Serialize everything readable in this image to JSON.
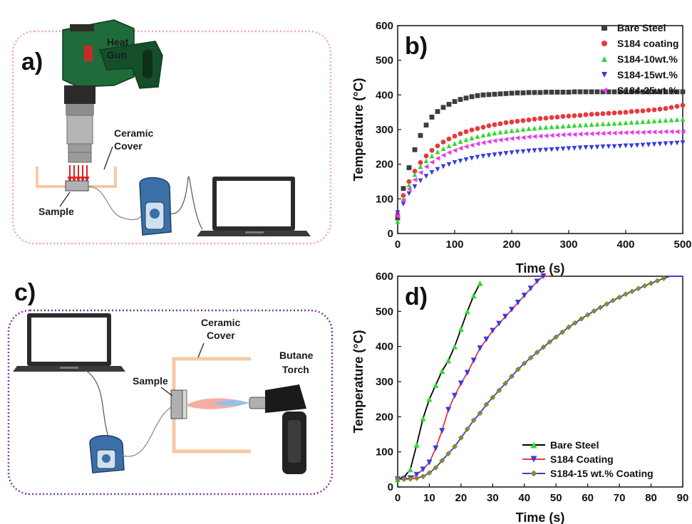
{
  "panel_a": {
    "letter": "a)",
    "heat_gun_label": [
      "Heat",
      "Gun"
    ],
    "ceramic_cover_label": [
      "Ceramic",
      "Cover"
    ],
    "sample_label": "Sample"
  },
  "panel_c": {
    "letter": "c)",
    "ceramic_cover_label": [
      "Ceramic",
      "Cover"
    ],
    "sample_label": "Sample",
    "torch_label": [
      "Butane",
      "Torch"
    ]
  },
  "colors": {
    "frame_a": "#f3a8a4",
    "frame_c": "#7e3a9e",
    "cover": "#f6c9a4",
    "gun_body": "#1f6b3a",
    "gun_handle": "#154f2a",
    "laptop": "#2b2b2b",
    "sensor": "#3b6fa8"
  },
  "chart_data": [
    {
      "type": "scatter",
      "panel": "b)",
      "xlabel": "Time (s)",
      "ylabel": "Temperature (°C)",
      "xlim": [
        0,
        500
      ],
      "ylim": [
        0,
        600
      ],
      "xticks": [
        0,
        100,
        200,
        300,
        400,
        500
      ],
      "yticks": [
        0,
        100,
        200,
        300,
        400,
        500,
        600
      ],
      "x": [
        0,
        10,
        20,
        30,
        40,
        50,
        60,
        70,
        80,
        90,
        100,
        110,
        120,
        130,
        140,
        150,
        160,
        170,
        180,
        190,
        200,
        210,
        220,
        230,
        240,
        250,
        260,
        270,
        280,
        290,
        300,
        310,
        320,
        330,
        340,
        350,
        360,
        370,
        380,
        390,
        400,
        410,
        420,
        430,
        440,
        450,
        460,
        470,
        480,
        490,
        500
      ],
      "legend_position": "top-right",
      "series": [
        {
          "name": "Bare Steel",
          "color": "#3c3c3c",
          "marker": "square",
          "values": [
            45,
            130,
            190,
            242,
            283,
            313,
            336,
            352,
            364,
            373,
            381,
            387,
            391,
            395,
            398,
            400,
            401,
            402,
            403,
            404,
            405,
            406,
            406,
            407,
            407,
            407,
            408,
            408,
            408,
            408,
            408,
            409,
            409,
            409,
            409,
            409,
            409,
            409,
            409,
            409,
            409,
            409,
            409,
            409,
            409,
            409,
            409,
            409,
            409,
            409,
            409
          ]
        },
        {
          "name": "S184 coating",
          "color": "#e8393b",
          "marker": "circle",
          "values": [
            55,
            110,
            150,
            180,
            205,
            224,
            240,
            253,
            264,
            273,
            281,
            288,
            294,
            299,
            303,
            307,
            311,
            314,
            317,
            320,
            322,
            324,
            326,
            328,
            330,
            332,
            333,
            335,
            336,
            338,
            339,
            340,
            341,
            343,
            344,
            345,
            346,
            347,
            348,
            349,
            350,
            352,
            353,
            354,
            356,
            357,
            359,
            361,
            364,
            367,
            370
          ]
        },
        {
          "name": "S184-10wt.%",
          "color": "#33d633",
          "marker": "triangle-up",
          "values": [
            35,
            100,
            140,
            170,
            193,
            210,
            224,
            236,
            245,
            253,
            260,
            266,
            271,
            276,
            280,
            284,
            287,
            290,
            293,
            295,
            297,
            299,
            301,
            303,
            304,
            306,
            307,
            308,
            309,
            310,
            311,
            312,
            313,
            314,
            315,
            316,
            317,
            317,
            318,
            319,
            320,
            321,
            322,
            323,
            324,
            325,
            326,
            327,
            328,
            329,
            330
          ]
        },
        {
          "name": "S184-15wt.%",
          "color": "#3a3ae0",
          "marker": "triangle-down",
          "values": [
            60,
            85,
            115,
            135,
            152,
            165,
            176,
            185,
            193,
            199,
            205,
            209,
            213,
            217,
            220,
            223,
            225,
            227,
            229,
            231,
            233,
            235,
            236,
            238,
            239,
            240,
            241,
            242,
            243,
            244,
            245,
            246,
            247,
            248,
            248,
            249,
            250,
            251,
            251,
            252,
            253,
            253,
            254,
            255,
            256,
            257,
            258,
            259,
            260,
            261,
            262
          ]
        },
        {
          "name": "S184-25wt.%",
          "color": "#e83ce8",
          "marker": "triangle-left",
          "values": [
            50,
            95,
            128,
            155,
            176,
            193,
            206,
            217,
            226,
            234,
            240,
            246,
            251,
            255,
            259,
            262,
            265,
            268,
            270,
            272,
            274,
            276,
            277,
            279,
            280,
            281,
            282,
            283,
            284,
            285,
            286,
            286,
            287,
            288,
            288,
            289,
            289,
            290,
            290,
            291,
            291,
            292,
            292,
            292,
            293,
            293,
            293,
            294,
            294,
            294,
            295
          ]
        }
      ]
    },
    {
      "type": "line",
      "panel": "d)",
      "xlabel": "Time (s)",
      "ylabel": "Temperature (°C)",
      "xlim": [
        0,
        90
      ],
      "ylim": [
        0,
        600
      ],
      "xticks": [
        0,
        10,
        20,
        30,
        40,
        50,
        60,
        70,
        80,
        90
      ],
      "yticks": [
        0,
        100,
        200,
        300,
        400,
        500,
        600
      ],
      "legend_position": "bottom-right",
      "series": [
        {
          "name": "Bare Steel",
          "line_color": "#000000",
          "marker_color": "#33d633",
          "marker": "triangle-up",
          "x": [
            0,
            2,
            4,
            6,
            8,
            10,
            12,
            14,
            16,
            18,
            20,
            22,
            24,
            26
          ],
          "values": [
            22,
            28,
            50,
            120,
            195,
            250,
            290,
            330,
            360,
            400,
            450,
            500,
            545,
            580
          ]
        },
        {
          "name": "S184 Coating",
          "line_color": "#e8393b",
          "marker_color": "#3a3ae0",
          "marker": "triangle-down",
          "x": [
            0,
            2,
            4,
            6,
            8,
            10,
            12,
            14,
            16,
            18,
            20,
            22,
            24,
            26,
            28,
            30,
            32,
            34,
            36,
            38,
            40,
            42,
            44,
            46,
            48
          ],
          "values": [
            22,
            23,
            25,
            35,
            50,
            70,
            110,
            160,
            220,
            260,
            295,
            325,
            360,
            395,
            420,
            445,
            465,
            485,
            505,
            525,
            545,
            565,
            585,
            600,
            610
          ]
        },
        {
          "name": "S184-15 wt.% Coating",
          "line_color": "#3a3ae0",
          "marker_color": "#8a8a2a",
          "marker": "diamond",
          "x": [
            0,
            2,
            4,
            6,
            8,
            10,
            12,
            14,
            16,
            18,
            20,
            22,
            24,
            26,
            28,
            30,
            32,
            34,
            36,
            38,
            40,
            42,
            44,
            46,
            48,
            50,
            52,
            54,
            56,
            58,
            60,
            62,
            64,
            66,
            68,
            70,
            72,
            74,
            76,
            78,
            80,
            82,
            84,
            86,
            88,
            90
          ],
          "values": [
            22,
            22,
            23,
            25,
            30,
            40,
            55,
            75,
            95,
            115,
            140,
            165,
            190,
            210,
            235,
            255,
            275,
            295,
            315,
            335,
            352,
            368,
            383,
            398,
            413,
            427,
            441,
            455,
            467,
            479,
            490,
            501,
            511,
            521,
            531,
            540,
            549,
            557,
            565,
            573,
            580,
            587,
            594,
            601,
            607,
            613
          ]
        }
      ]
    }
  ]
}
